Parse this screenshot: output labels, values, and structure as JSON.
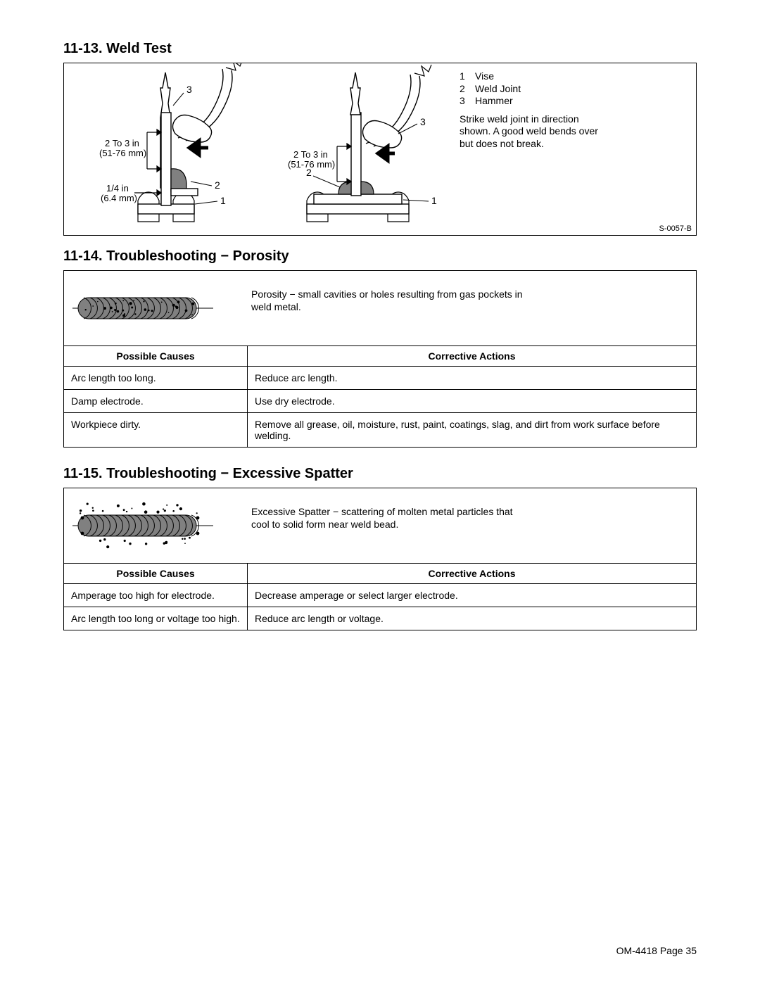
{
  "sections": {
    "weld_test": {
      "heading": "11-13. Weld Test",
      "legend": [
        {
          "num": "1",
          "label": "Vise"
        },
        {
          "num": "2",
          "label": "Weld Joint"
        },
        {
          "num": "3",
          "label": "Hammer"
        }
      ],
      "note": "Strike weld joint in direction shown. A good weld bends over but does not break.",
      "ref_id": "S-0057-B",
      "diagram": {
        "dim1_line1": "2 To 3 in",
        "dim1_line2": "(51-76 mm)",
        "dim2_line1": "1/4 in",
        "dim2_line2": "(6.4 mm)",
        "callout1": "1",
        "callout2": "2",
        "callout3": "3"
      }
    },
    "porosity": {
      "heading": "11-14. Troubleshooting − Porosity",
      "desc": "Porosity − small cavities or holes resulting from gas pockets in weld metal.",
      "table_headers": {
        "causes": "Possible Causes",
        "actions": "Corrective Actions"
      },
      "rows": [
        {
          "cause": "Arc length too long.",
          "action": "Reduce arc length."
        },
        {
          "cause": "Damp electrode.",
          "action": "Use dry electrode."
        },
        {
          "cause": "Workpiece dirty.",
          "action": "Remove all grease, oil, moisture, rust, paint, coatings, slag, and dirt from work surface before welding."
        }
      ],
      "visual": {
        "bead_fill": "#808080",
        "dot_fill": "#000000",
        "ripple_stroke": "#000000",
        "n_ripples": 18
      }
    },
    "spatter": {
      "heading": "11-15. Troubleshooting − Excessive Spatter",
      "desc": "Excessive Spatter − scattering of molten metal particles that cool to solid form near weld bead.",
      "table_headers": {
        "causes": "Possible Causes",
        "actions": "Corrective Actions"
      },
      "rows": [
        {
          "cause": "Amperage too high for electrode.",
          "action": "Decrease amperage or select larger electrode."
        },
        {
          "cause": "Arc length too long or voltage too high.",
          "action": "Reduce arc length or voltage."
        }
      ],
      "visual": {
        "bead_fill": "#808080",
        "dot_fill": "#000000",
        "ripple_stroke": "#000000",
        "n_ripples": 18
      }
    }
  },
  "footer": "OM-4418 Page 35",
  "styling": {
    "page_bg": "#ffffff",
    "text_color": "#000000",
    "border_color": "#000000",
    "heading_fontsize": 20,
    "body_fontsize": 14,
    "small_fontsize": 11
  }
}
